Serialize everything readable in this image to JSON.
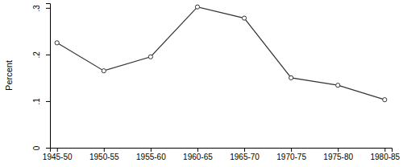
{
  "chart_data": {
    "type": "line",
    "y_label": "Percent",
    "categories": [
      "1945-50",
      "1950-55",
      "1955-60",
      "1960-65",
      "1965-70",
      "1970-75",
      "1975-80",
      "1980-85"
    ],
    "values": [
      0.225,
      0.165,
      0.195,
      0.302,
      0.278,
      0.15,
      0.134,
      0.103
    ],
    "color": "#333333",
    "marker": "circle",
    "ylim": [
      0,
      0.31
    ],
    "yticks": [
      0,
      {
        "value": 0.1,
        "label": ".1"
      },
      {
        "value": 0.2,
        "label": ".2"
      },
      {
        "value": 0.3,
        "label": ".3"
      }
    ],
    "grid": false
  }
}
